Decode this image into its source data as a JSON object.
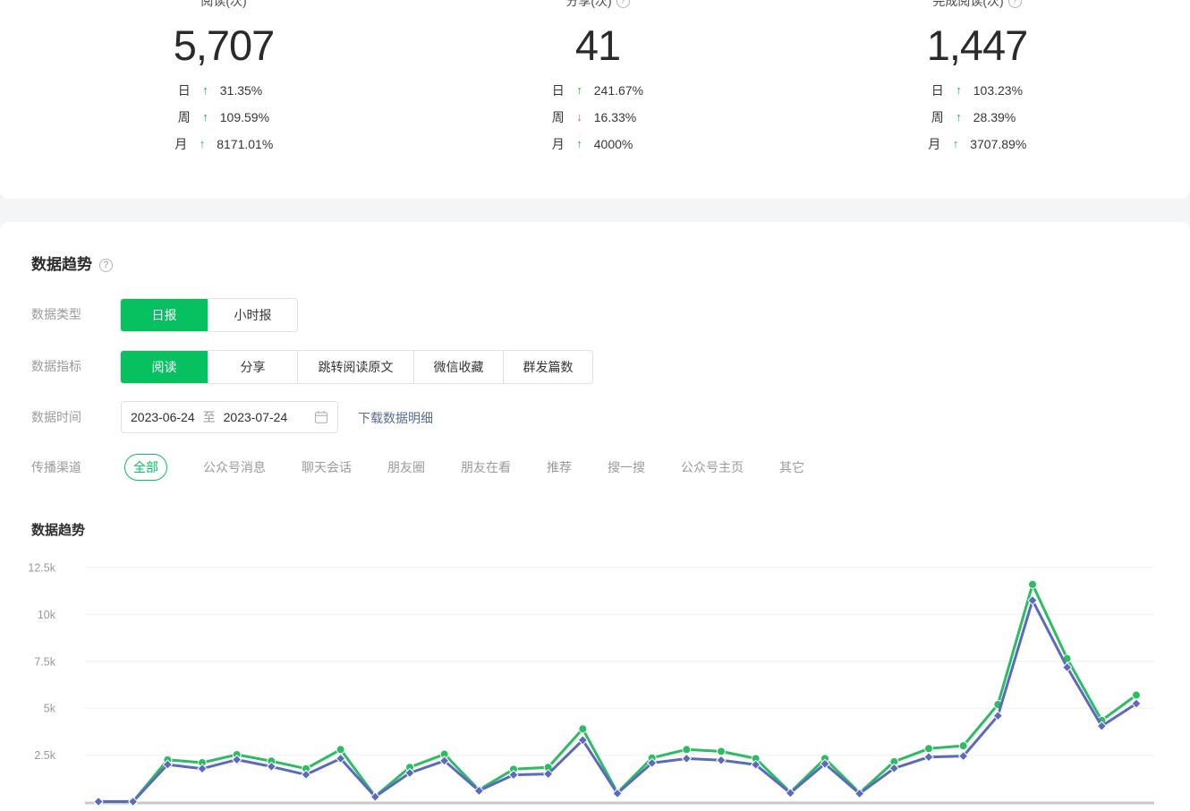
{
  "stats": {
    "cards": [
      {
        "title": "阅读(次)",
        "has_help": false,
        "value": "5,707",
        "rows": [
          {
            "period": "日",
            "dir": "up",
            "value": "31.35%"
          },
          {
            "period": "周",
            "dir": "up",
            "value": "109.59%"
          },
          {
            "period": "月",
            "dir": "up",
            "value": "8171.01%"
          }
        ]
      },
      {
        "title": "分享(次)",
        "has_help": true,
        "value": "41",
        "rows": [
          {
            "period": "日",
            "dir": "up",
            "value": "241.67%"
          },
          {
            "period": "周",
            "dir": "down",
            "value": "16.33%"
          },
          {
            "period": "月",
            "dir": "up",
            "value": "4000%"
          }
        ]
      },
      {
        "title": "完成阅读(次)",
        "has_help": true,
        "value": "1,447",
        "rows": [
          {
            "period": "日",
            "dir": "up",
            "value": "103.23%"
          },
          {
            "period": "周",
            "dir": "up",
            "value": "28.39%"
          },
          {
            "period": "月",
            "dir": "up",
            "value": "3707.89%"
          }
        ]
      }
    ]
  },
  "trend_section": {
    "heading": "数据趋势",
    "chart_title": "数据趋势",
    "filters": {
      "data_type": {
        "label": "数据类型",
        "options": [
          "日报",
          "小时报"
        ],
        "active": "日报"
      },
      "data_metric": {
        "label": "数据指标",
        "options": [
          "阅读",
          "分享",
          "跳转阅读原文",
          "微信收藏",
          "群发篇数"
        ],
        "active": "阅读"
      },
      "data_time": {
        "label": "数据时间",
        "start": "2023-06-24",
        "separator": "至",
        "end": "2023-07-24",
        "download_label": "下载数据明细"
      },
      "channel": {
        "label": "传播渠道",
        "options": [
          "全部",
          "公众号消息",
          "聊天会话",
          "朋友圈",
          "朋友在看",
          "推荐",
          "搜一搜",
          "公众号主页",
          "其它"
        ],
        "active": "全部"
      }
    }
  },
  "chart_data": {
    "type": "line",
    "title": "数据趋势",
    "legend": "none",
    "grid": true,
    "x_axis_labels_visible": false,
    "ylim": [
      0,
      12500
    ],
    "yticks": {
      "values": [
        2500,
        5000,
        7500,
        10000,
        12500
      ],
      "labels": [
        "2.5k",
        "5k",
        "7.5k",
        "10k",
        "12.5k"
      ]
    },
    "x": [
      "2023-06-24",
      "2023-06-25",
      "2023-06-26",
      "2023-06-27",
      "2023-06-28",
      "2023-06-29",
      "2023-06-30",
      "2023-07-01",
      "2023-07-02",
      "2023-07-03",
      "2023-07-04",
      "2023-07-05",
      "2023-07-06",
      "2023-07-07",
      "2023-07-08",
      "2023-07-09",
      "2023-07-10",
      "2023-07-11",
      "2023-07-12",
      "2023-07-13",
      "2023-07-14",
      "2023-07-15",
      "2023-07-16",
      "2023-07-17",
      "2023-07-18",
      "2023-07-19",
      "2023-07-20",
      "2023-07-21",
      "2023-07-22",
      "2023-07-23",
      "2023-07-24"
    ],
    "series": [
      {
        "name": "series-green",
        "color": "#2bbd62",
        "marker": "circle",
        "values": [
          30,
          30,
          2250,
          2100,
          2530,
          2180,
          1780,
          2800,
          300,
          1850,
          2550,
          650,
          1750,
          1850,
          3900,
          500,
          2350,
          2800,
          2700,
          2320,
          520,
          2320,
          490,
          2150,
          2850,
          3000,
          5200,
          11600,
          7650,
          4350,
          5700
        ]
      },
      {
        "name": "series-blue",
        "color": "#5b6ac0",
        "marker": "diamond",
        "values": [
          25,
          25,
          2000,
          1780,
          2260,
          1890,
          1460,
          2320,
          280,
          1550,
          2200,
          600,
          1450,
          1500,
          3300,
          460,
          2080,
          2320,
          2230,
          1990,
          480,
          2040,
          450,
          1800,
          2400,
          2450,
          4600,
          10750,
          7180,
          4050,
          5250
        ]
      }
    ]
  },
  "colors": {
    "accent_green": "#07c160",
    "line_green": "#2bbd62",
    "line_blue": "#5b6ac0",
    "up_arrow": "#09be39",
    "down_arrow": "#f0524f",
    "link": "#576b95",
    "label_gray": "#9b9b9b",
    "text_dark": "#353535",
    "divider_band": "#f4f5f7"
  }
}
